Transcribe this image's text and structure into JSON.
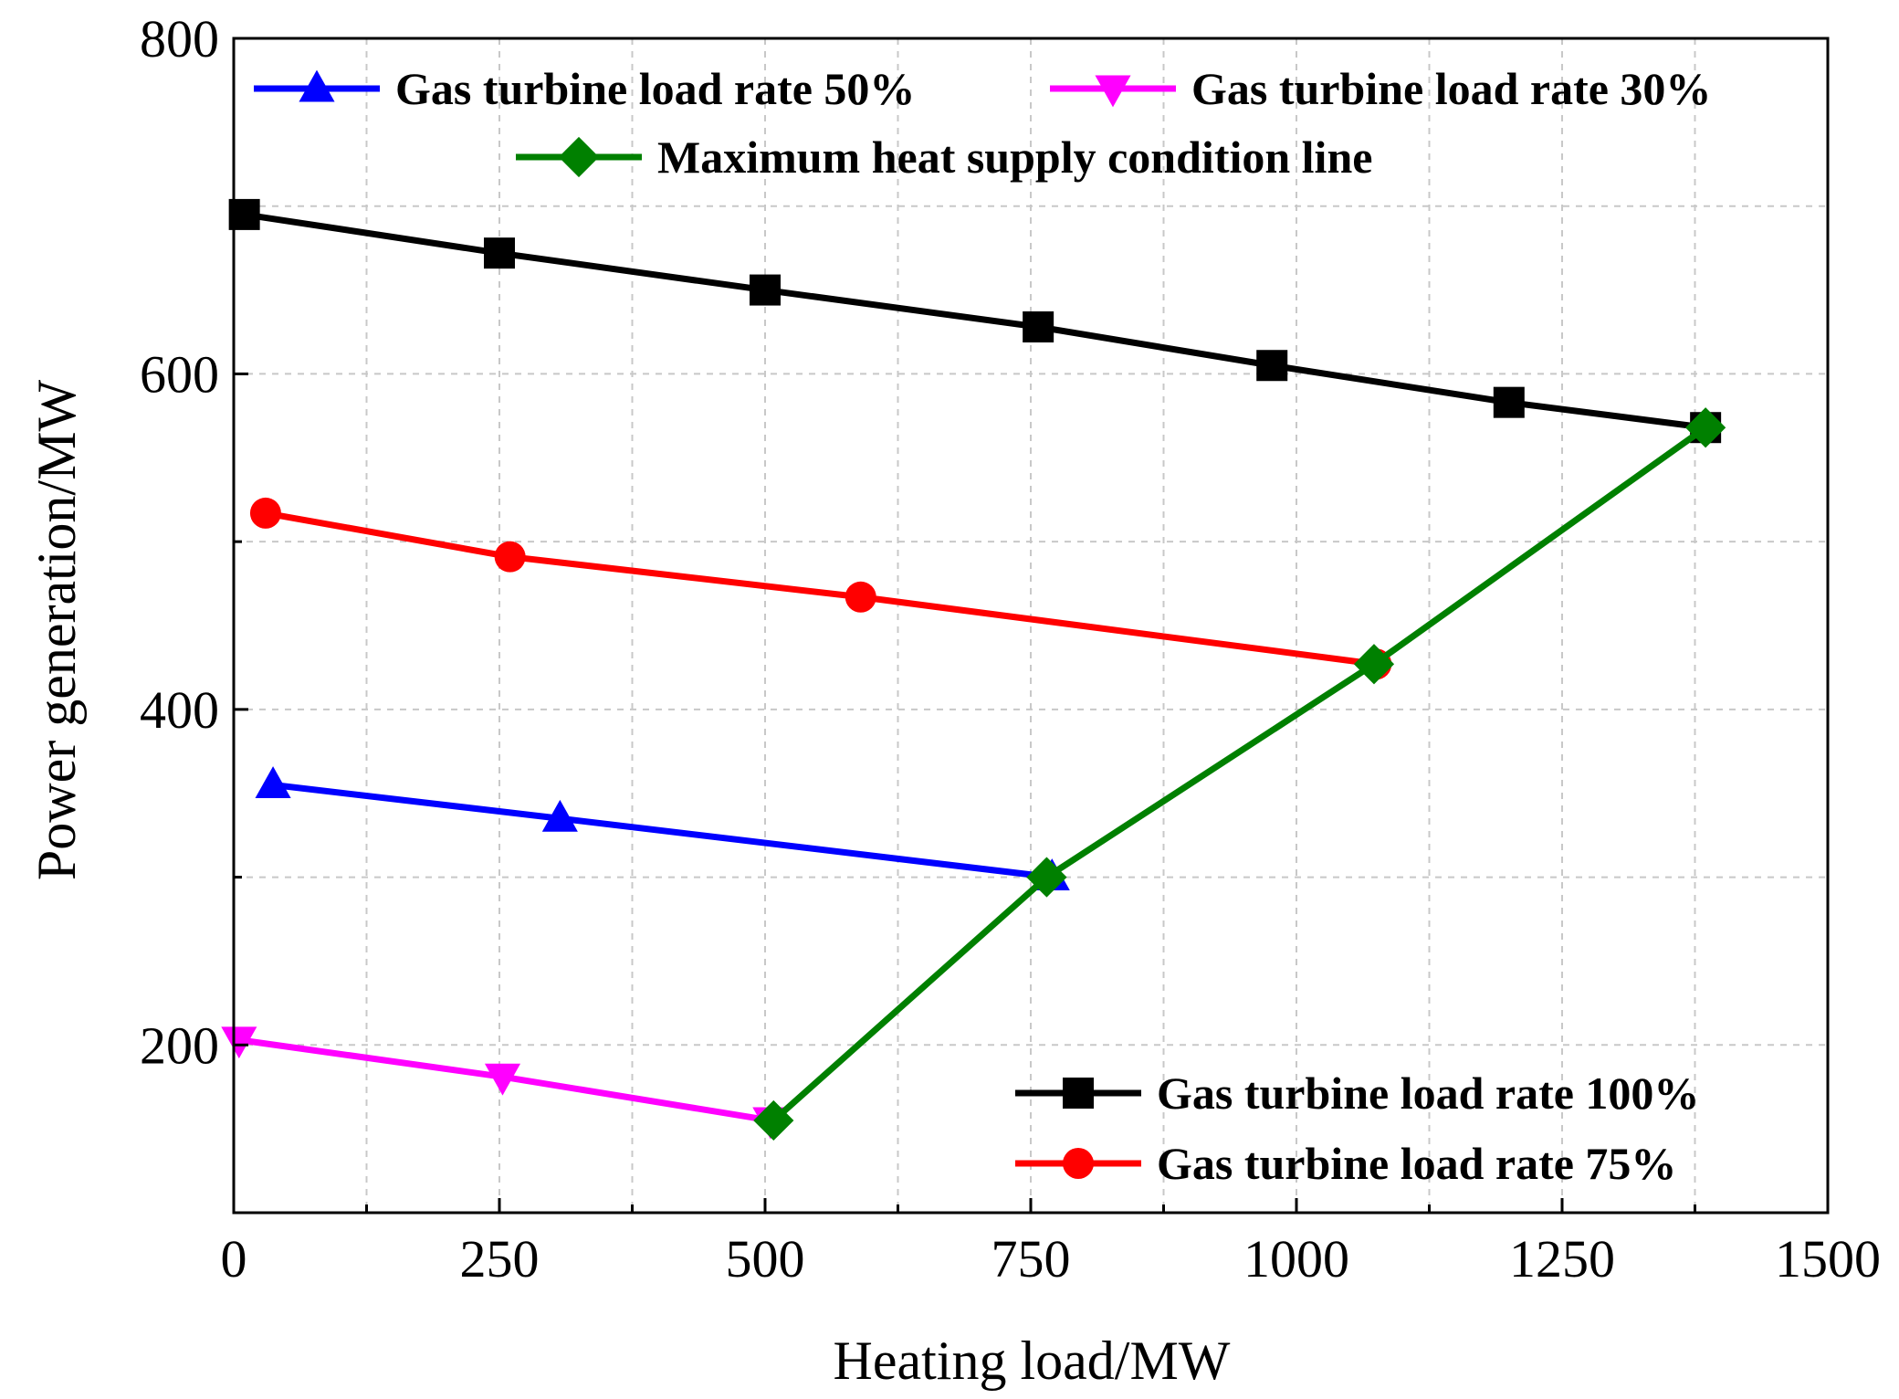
{
  "chart_data": {
    "type": "line",
    "xlabel": "Heating load/MW",
    "ylabel": "Power generation/MW",
    "xlim": [
      0,
      1500
    ],
    "ylim": [
      100,
      800
    ],
    "xticks": [
      0,
      250,
      500,
      750,
      1000,
      1250,
      1500
    ],
    "yticks": [
      200,
      400,
      600,
      800
    ],
    "xticks_display": [
      "0",
      "250",
      "500",
      "750",
      "1000",
      "1250",
      "1500"
    ],
    "yticks_display": [
      "200",
      "400",
      "600",
      "800"
    ],
    "grid": true,
    "series": [
      {
        "name": "Gas turbine load rate 100%",
        "color": "#000000",
        "marker": "square",
        "x": [
          10,
          250,
          500,
          757,
          977,
          1200,
          1385
        ],
        "y": [
          695,
          672,
          650,
          628,
          605,
          583,
          568
        ]
      },
      {
        "name": "Gas turbine load rate 75%",
        "color": "#ff0000",
        "marker": "circle",
        "x": [
          30,
          260,
          590,
          1075
        ],
        "y": [
          517,
          491,
          467,
          427
        ]
      },
      {
        "name": "Gas turbine load rate 50%",
        "color": "#0000ff",
        "marker": "triangle-up",
        "x": [
          37,
          307,
          770
        ],
        "y": [
          355,
          335,
          300
        ]
      },
      {
        "name": "Gas turbine load rate 30%",
        "color": "#ff00ff",
        "marker": "triangle-down",
        "x": [
          5,
          253,
          505
        ],
        "y": [
          203,
          181,
          155
        ]
      },
      {
        "name": "Maximum heat supply condition line",
        "color": "#008000",
        "marker": "diamond",
        "x": [
          508,
          765,
          1073,
          1385
        ],
        "y": [
          155,
          300,
          427,
          568
        ]
      }
    ],
    "legend": {
      "top": [
        "Gas turbine load rate 50%",
        "Gas turbine load rate 30%",
        "Maximum heat supply condition line"
      ],
      "bottom": [
        "Gas turbine load rate 100%",
        "Gas turbine load rate 75%"
      ]
    }
  }
}
